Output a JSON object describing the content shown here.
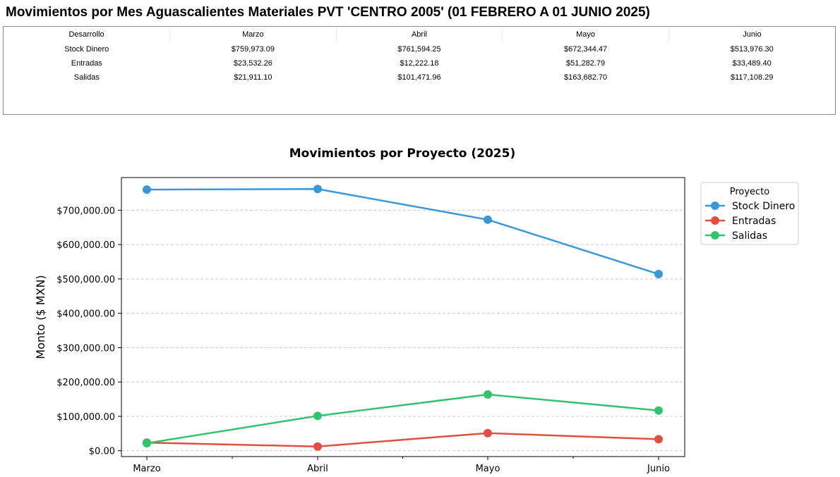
{
  "page_title": "Movimientos por Mes Aguascalientes Materiales PVT 'CENTRO 2005' (01 FEBRERO A 01 JUNIO 2025)",
  "table": {
    "headers": [
      "Desarrollo",
      "Marzo",
      "Abril",
      "Mayo",
      "Junio"
    ],
    "rows": [
      [
        "Stock Dinero",
        "$759,973.09",
        "$761,594.25",
        "$672,344.47",
        "$513,976.30"
      ],
      [
        "Entradas",
        "$23,532.26",
        "$12,222.18",
        "$51,282.79",
        "$33,489.40"
      ],
      [
        "Salidas",
        "$21,911.10",
        "$101,471.96",
        "$163,682.70",
        "$117,108.29"
      ]
    ]
  },
  "chart_data": {
    "type": "line",
    "title": "Movimientos por Proyecto (2025)",
    "xlabel": "",
    "ylabel": "Monto ($ MXN)",
    "categories": [
      "Marzo",
      "Abril",
      "Mayo",
      "Junio"
    ],
    "ylim": [
      -17000,
      795000
    ],
    "yticks": [
      0,
      100000,
      200000,
      300000,
      400000,
      500000,
      600000,
      700000
    ],
    "ytick_labels": [
      "$0.00",
      "$100,000.00",
      "$200,000.00",
      "$300,000.00",
      "$400,000.00",
      "$500,000.00",
      "$600,000.00",
      "$700,000.00"
    ],
    "grid": "horizontal dashed",
    "legend": {
      "title": "Proyecto",
      "placement": "outside top-right"
    },
    "series": [
      {
        "name": "Stock Dinero",
        "color": "#3b98d6",
        "values": [
          759973.09,
          761594.25,
          672344.47,
          513976.3
        ]
      },
      {
        "name": "Entradas",
        "color": "#e04f3f",
        "values": [
          23532.26,
          12222.18,
          51282.79,
          33489.4
        ]
      },
      {
        "name": "Salidas",
        "color": "#35c26f",
        "values": [
          21911.1,
          101471.96,
          163682.7,
          117108.29
        ]
      }
    ]
  }
}
